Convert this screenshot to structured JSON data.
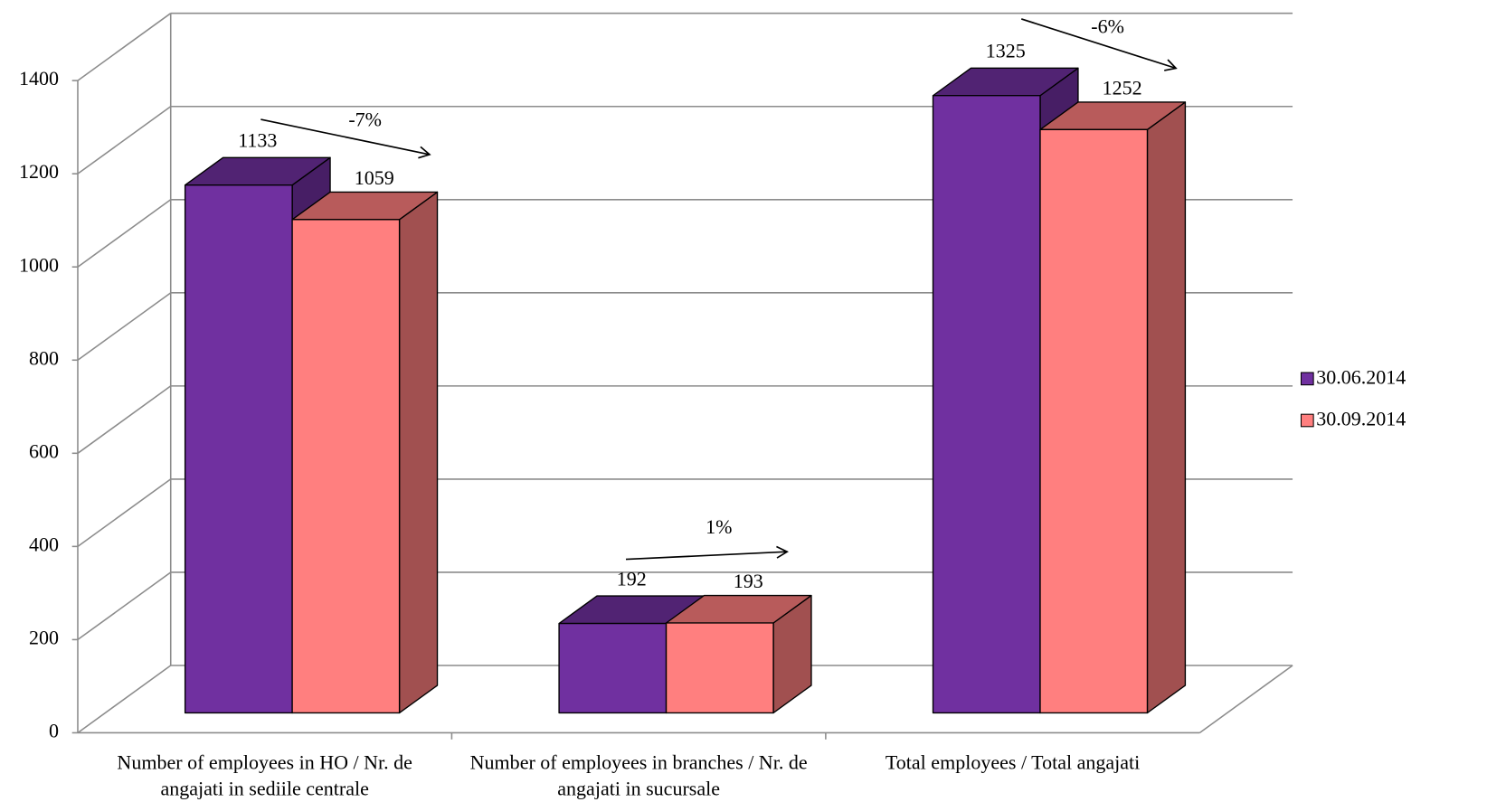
{
  "chart_data": {
    "type": "bar3d",
    "categories": [
      "Number of employees in HO / Nr. de angajati in sediile centrale",
      "Number of employees in branches / Nr. de angajati in sucursale",
      "Total employees / Total angajati"
    ],
    "series": [
      {
        "name": "30.06.2014",
        "color": "#7030a0",
        "values": [
          1133,
          192,
          1325
        ]
      },
      {
        "name": "30.09.2014",
        "color": "#ff7f7f",
        "values": [
          1059,
          193,
          1252
        ]
      }
    ],
    "ylim": [
      0,
      1400
    ],
    "yticks": [
      0,
      200,
      400,
      600,
      800,
      1000,
      1200,
      1400
    ],
    "grid": true,
    "legend": "right",
    "annotations": [
      {
        "text": "-7%",
        "color": "#ff0000"
      },
      {
        "text": "1%",
        "color": "#00b050"
      },
      {
        "text": "-6%",
        "color": "#ff0000"
      }
    ]
  }
}
